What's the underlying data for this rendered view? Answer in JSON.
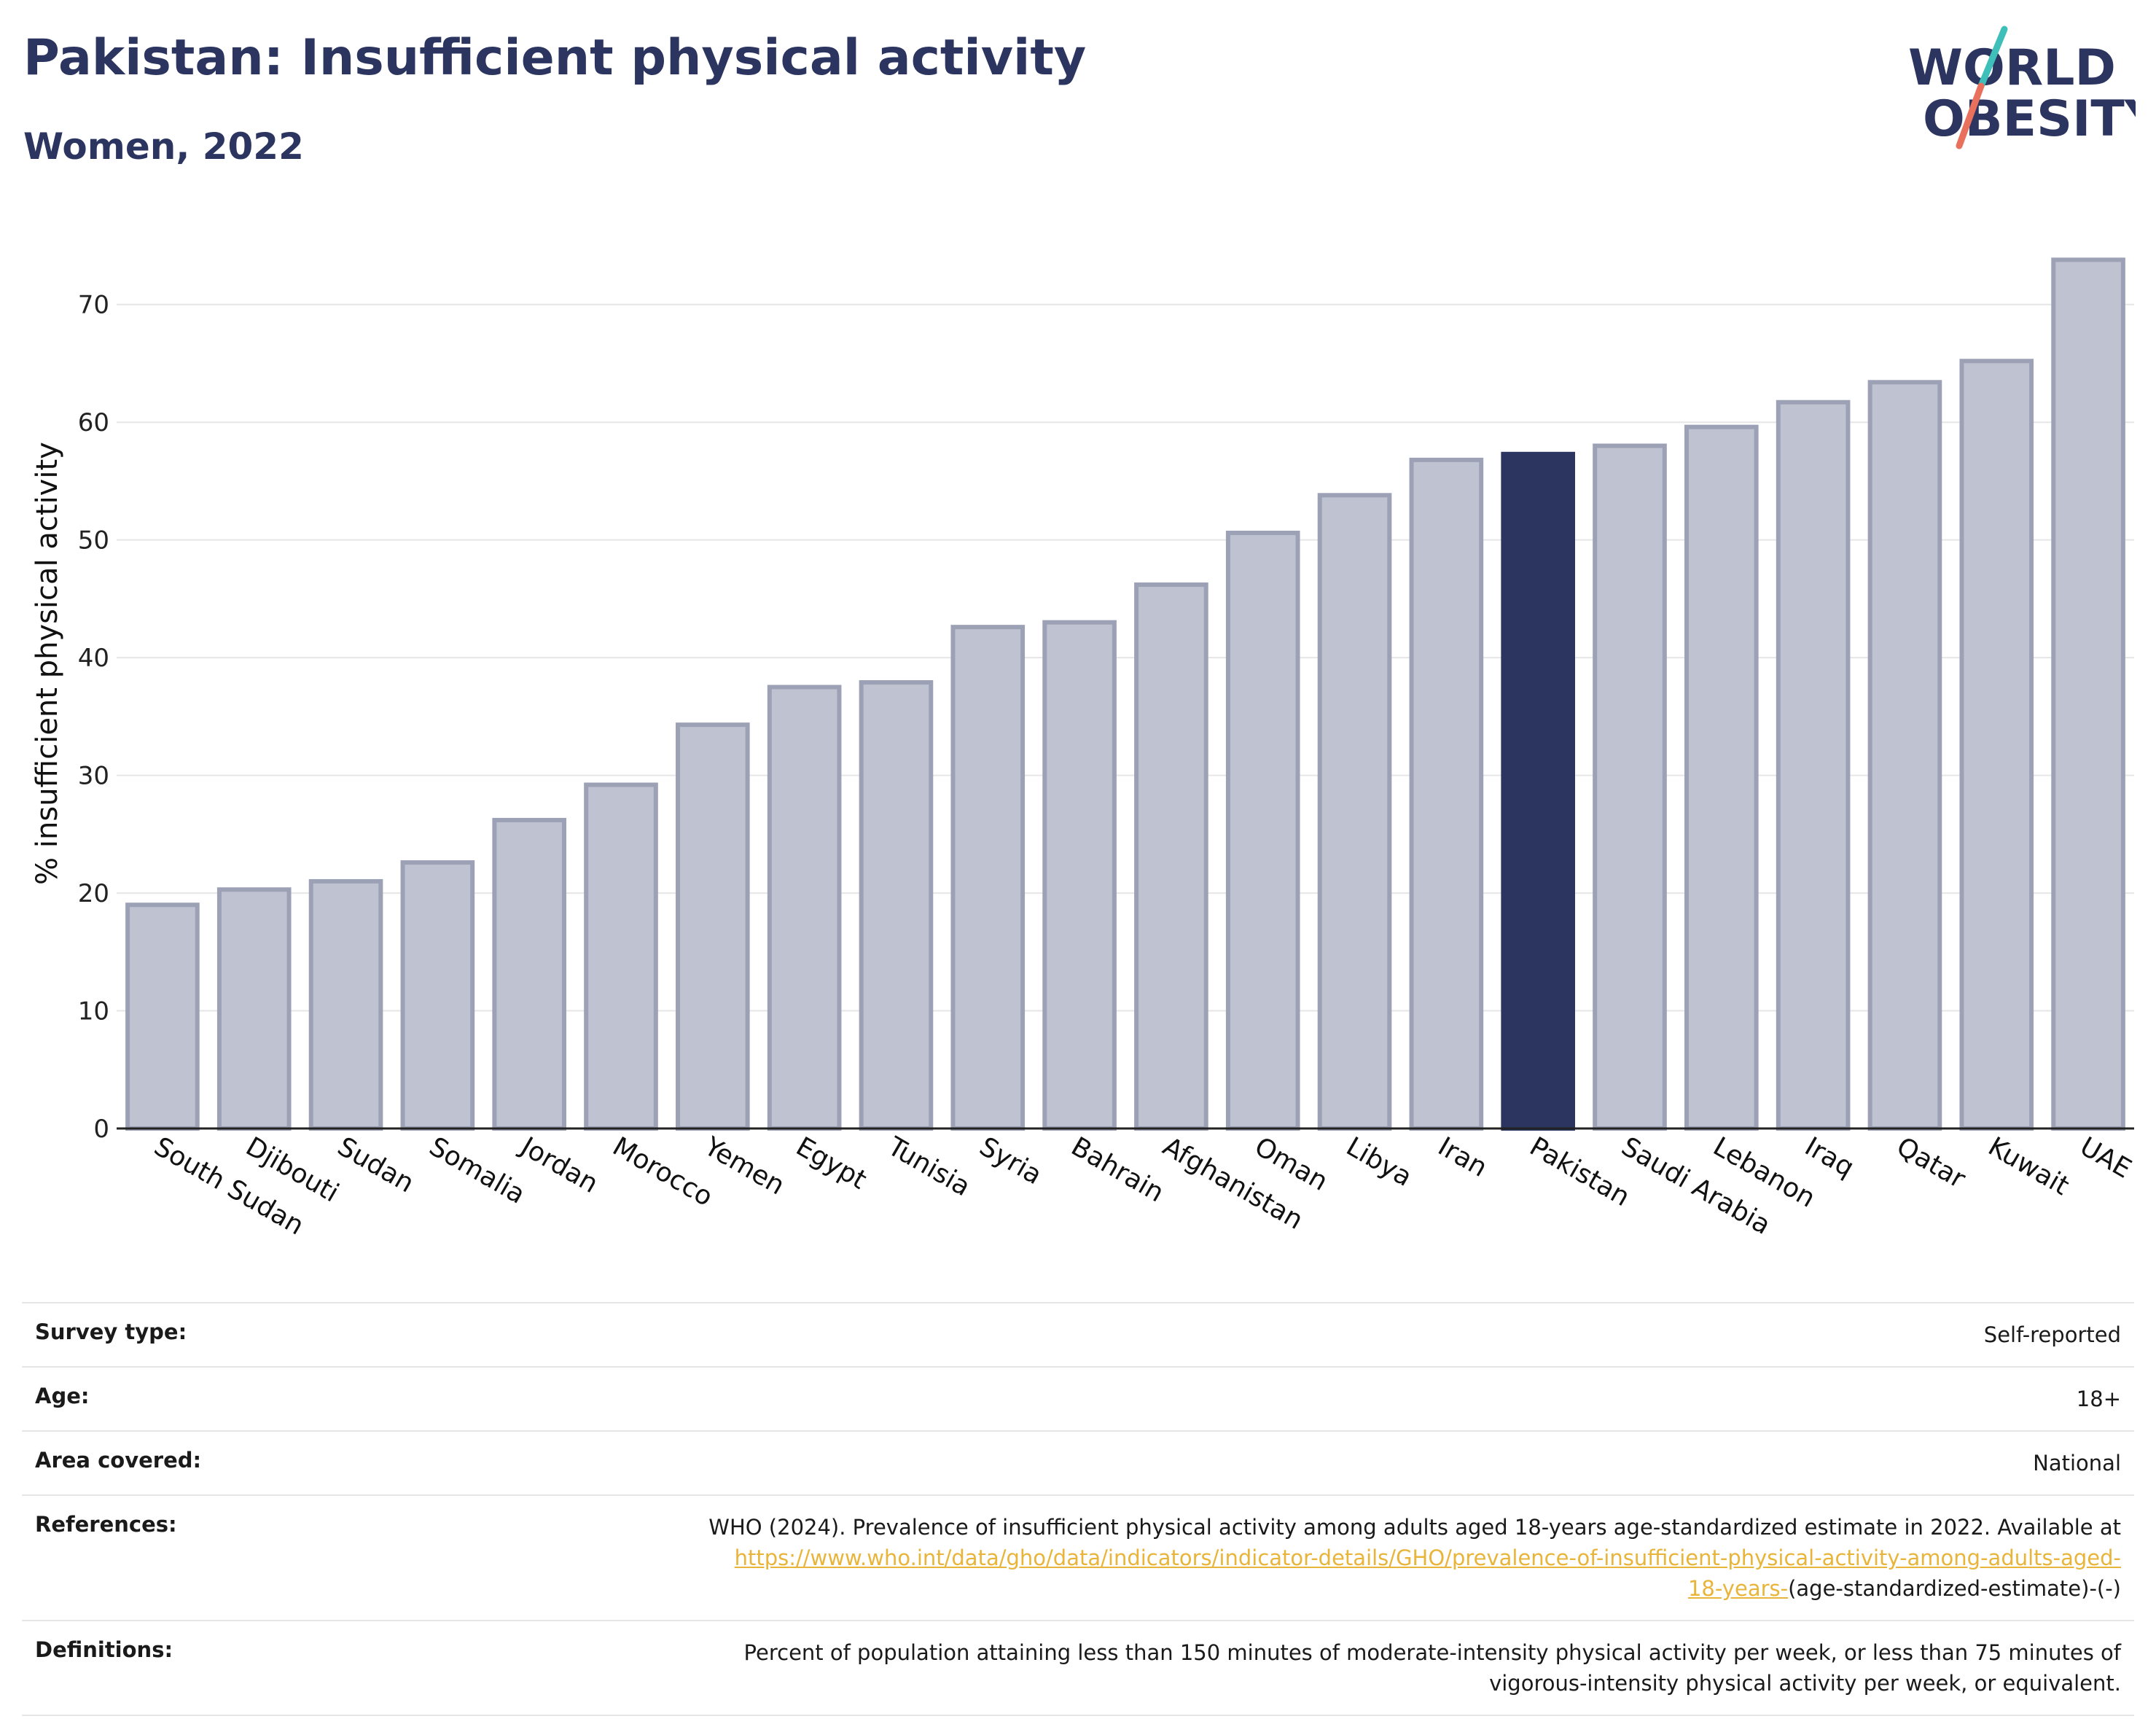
{
  "header": {
    "title": "Pakistan: Insufficient physical activity",
    "subtitle": "Women, 2022"
  },
  "logo": {
    "line1": "WORLD",
    "line2": "OBESITY"
  },
  "colors": {
    "highlight": "#2b3560",
    "bar_fill": "#bfc2d0",
    "bar_stroke": "#9da1b6",
    "title": "#2b3560",
    "link": "#e8b53a",
    "logo_teal": "#3fbfb9",
    "logo_red": "#e8705c"
  },
  "chart_data": {
    "type": "bar",
    "title": "Pakistan: Insufficient physical activity",
    "subtitle": "Women, 2022",
    "ylabel": "% insufficient physical activity",
    "xlabel": "",
    "ylim": [
      0,
      75
    ],
    "yticks": [
      0,
      10,
      20,
      30,
      40,
      50,
      60,
      70
    ],
    "grid": true,
    "highlight": "Pakistan",
    "categories": [
      "South Sudan",
      "Djibouti",
      "Sudan",
      "Somalia",
      "Jordan",
      "Morocco",
      "Yemen",
      "Egypt",
      "Tunisia",
      "Syria",
      "Bahrain",
      "Afghanistan",
      "Oman",
      "Libya",
      "Iran",
      "Pakistan",
      "Saudi Arabia",
      "Lebanon",
      "Iraq",
      "Qatar",
      "Kuwait",
      "UAE"
    ],
    "values": [
      19.0,
      20.3,
      21.0,
      22.6,
      26.2,
      29.2,
      34.3,
      37.5,
      37.9,
      42.6,
      43.0,
      46.2,
      50.6,
      53.8,
      56.8,
      57.3,
      58.0,
      59.6,
      61.7,
      63.4,
      65.2,
      73.8
    ]
  },
  "table": {
    "rows": [
      {
        "key": "Survey type:",
        "value": "Self-reported"
      },
      {
        "key": "Age:",
        "value": "18+"
      },
      {
        "key": "Area covered:",
        "value": "National"
      }
    ],
    "references": {
      "key": "References:",
      "text": "WHO (2024). Prevalence of insufficient physical activity among adults aged 18-years age-standardized estimate in 2022. Available at",
      "link1": "https://www.who.int/data/gho/data/indicators/indicator-details/GHO/prevalence-of-insufficient-physical-activity-among-adults-aged-",
      "link2": "18-years-",
      "suffix": "(age-standardized-estimate)-(-)"
    },
    "definitions": {
      "key": "Definitions:",
      "line1": "Percent of population attaining less than 150 minutes of moderate-intensity physical activity per week, or less than 75 minutes of",
      "line2": "vigorous-intensity physical activity per week, or equivalent."
    }
  }
}
